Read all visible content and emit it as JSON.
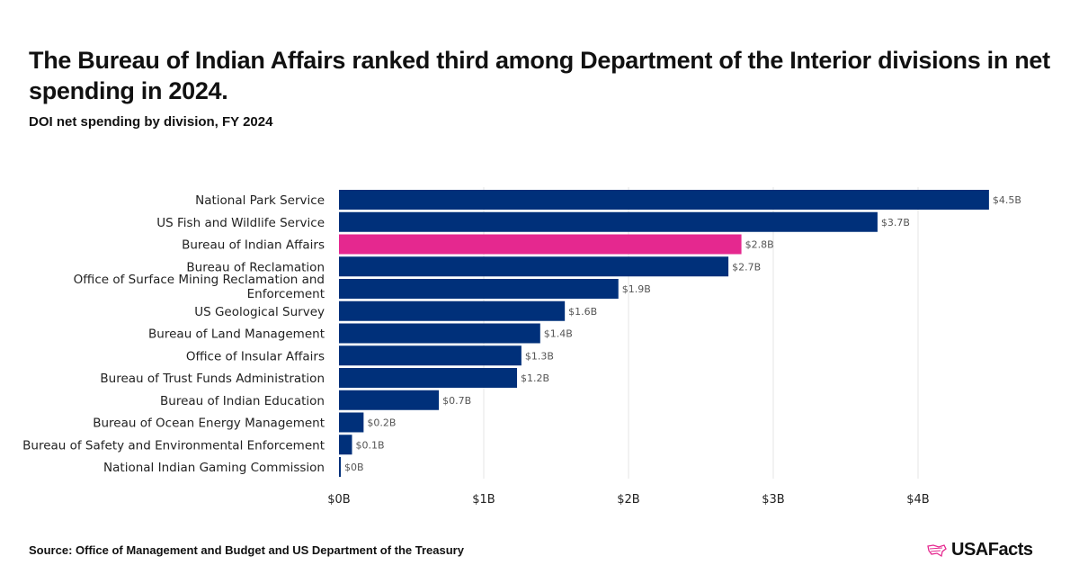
{
  "title": "The Bureau of Indian Affairs ranked third among Department of the Interior divisions in net spending in 2024.",
  "subtitle": "DOI net spending by division, FY 2024",
  "source": "Source: Office of Management and Budget and US Department of the Treasury",
  "logo_text": "USAFacts",
  "colors": {
    "bar": "#00307a",
    "highlight": "#e5288f",
    "grid": "#e4e4e4",
    "label": "#555555"
  },
  "chart_data": {
    "type": "bar",
    "orientation": "horizontal",
    "title": "DOI net spending by division, FY 2024",
    "xlabel": "",
    "ylabel": "",
    "xlim": [
      0,
      4.6
    ],
    "x_ticks": [
      0,
      1,
      2,
      3,
      4
    ],
    "x_tick_labels": [
      "$0B",
      "$1B",
      "$2B",
      "$3B",
      "$4B"
    ],
    "grid": true,
    "categories": [
      "National Park Service",
      "US Fish and Wildlife Service",
      "Bureau of Indian Affairs",
      "Bureau of Reclamation",
      "Office of Surface Mining Reclamation and Enforcement",
      "US Geological Survey",
      "Bureau of Land Management",
      "Office of Insular Affairs",
      "Bureau of Trust Funds Administration",
      "Bureau of Indian Education",
      "Bureau of Ocean Energy Management",
      "Bureau of Safety and Environmental Enforcement",
      "National Indian Gaming Commission"
    ],
    "values": [
      4.49,
      3.72,
      2.78,
      2.69,
      1.93,
      1.56,
      1.39,
      1.26,
      1.23,
      0.69,
      0.17,
      0.09,
      0.01
    ],
    "data_labels": [
      "$4.5B",
      "$3.7B",
      "$2.8B",
      "$2.7B",
      "$1.9B",
      "$1.6B",
      "$1.4B",
      "$1.3B",
      "$1.2B",
      "$0.7B",
      "$0.2B",
      "$0.1B",
      "$0B"
    ],
    "highlight_index": 2
  }
}
